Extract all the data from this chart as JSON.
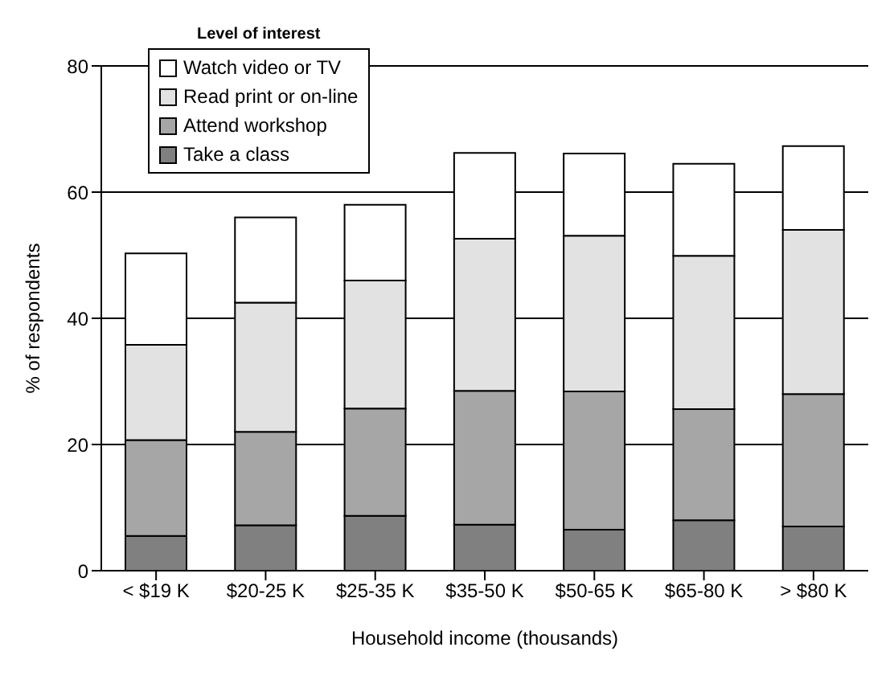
{
  "chart_data": {
    "type": "bar",
    "stacked": true,
    "xlabel": "Household income (thousands)",
    "ylabel": "% of respondents",
    "legend_title": "Level of interest",
    "legend": "top left",
    "grid": "y",
    "categories": [
      "< $19 K",
      "$20-25 K",
      "$25-35 K",
      "$35-50 K",
      "$50-65 K",
      "$65-80 K",
      "> $80 K"
    ],
    "ylim": [
      0,
      80
    ],
    "yticks": [
      0,
      20,
      40,
      60,
      80
    ],
    "series": [
      {
        "name": "Take a class",
        "color": "#808080",
        "values": [
          5.5,
          7.2,
          8.7,
          7.3,
          6.5,
          8,
          7
        ]
      },
      {
        "name": "Attend workshop",
        "color": "#a6a6a6",
        "values": [
          15.2,
          14.8,
          17,
          21.2,
          21.9,
          17.6,
          21
        ]
      },
      {
        "name": "Read print or on-line",
        "color": "#e2e2e2",
        "values": [
          15.1,
          20.5,
          20.3,
          24.1,
          24.7,
          24.3,
          26
        ]
      },
      {
        "name": "Watch video or TV",
        "color": "#ffffff",
        "values": [
          14.5,
          13.5,
          12,
          13.6,
          13,
          14.6,
          13.3
        ]
      }
    ]
  }
}
